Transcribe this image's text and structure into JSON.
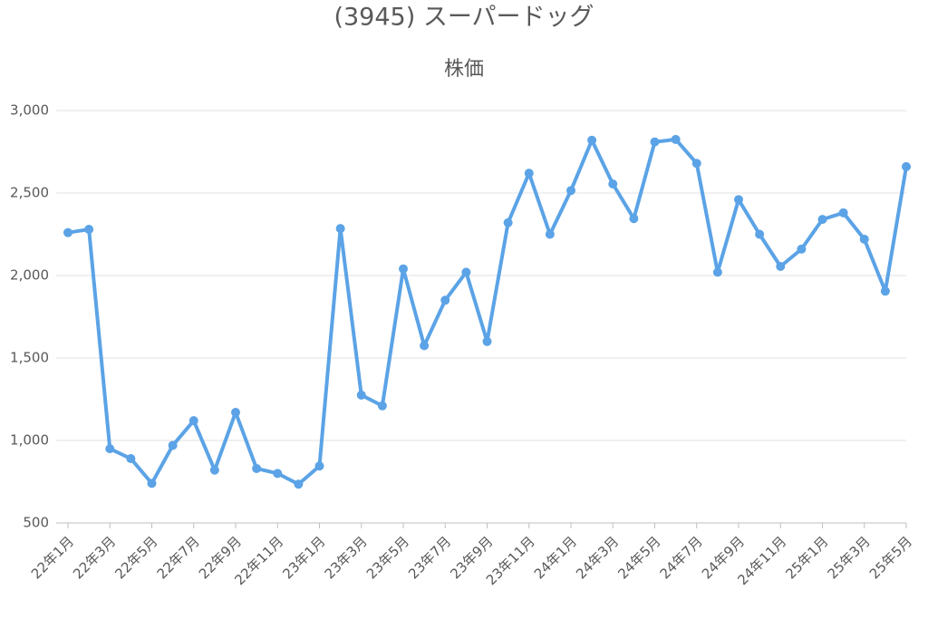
{
  "chart_data": {
    "type": "line",
    "title": "(3945) スーパードッグ",
    "subtitle": "株価",
    "categories": [
      "22年1月",
      null,
      "22年3月",
      null,
      "22年5月",
      null,
      "22年7月",
      null,
      "22年9月",
      null,
      "22年11月",
      null,
      "23年1月",
      null,
      "23年3月",
      null,
      "23年5月",
      null,
      "23年7月",
      null,
      "23年9月",
      null,
      "23年11月",
      null,
      "24年1月",
      null,
      "24年3月",
      null,
      "24年5月",
      null,
      "24年7月",
      null,
      "24年9月",
      null,
      "24年11月",
      null,
      "25年1月",
      null,
      "25年3月",
      null,
      "25年5月"
    ],
    "values": [
      2260,
      2280,
      950,
      890,
      740,
      970,
      1120,
      820,
      1170,
      830,
      800,
      735,
      845,
      2285,
      1275,
      1210,
      2040,
      1575,
      1850,
      2020,
      1600,
      2320,
      2620,
      2250,
      2515,
      2820,
      2555,
      2345,
      2810,
      2825,
      2680,
      2020,
      2460,
      2250,
      2055,
      2160,
      2340,
      2380,
      2220,
      1905,
      2660
    ],
    "color": "#5ba3e6",
    "ylim": [
      500,
      3000
    ],
    "yticks": [
      500,
      {
        "value": 1000,
        "label": "1,000"
      },
      {
        "value": 1500,
        "label": "1,500"
      },
      {
        "value": 2000,
        "label": "2,000"
      },
      {
        "value": 2500,
        "label": "2,500"
      },
      {
        "value": 3000,
        "label": "3,000"
      }
    ],
    "grid": true
  }
}
